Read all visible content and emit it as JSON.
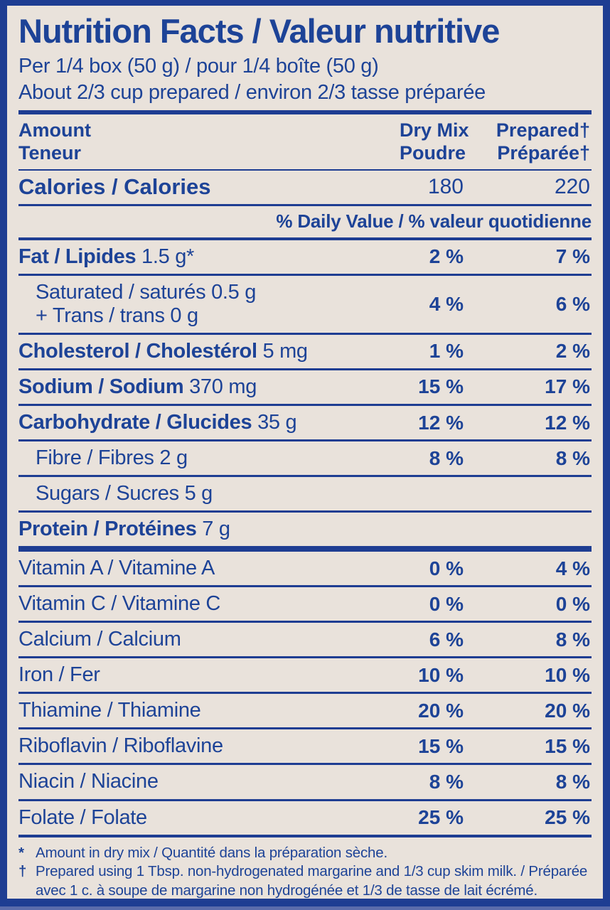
{
  "colors": {
    "text_blue": "#1d4397",
    "line_blue": "#1e3d92",
    "bg_beige": "#e9e2db",
    "edge_light": "#5b6cab"
  },
  "label": {
    "title": "Nutrition Facts / Valeur nutritive",
    "serving_line1": "Per 1/4 box (50 g) / pour 1/4 boîte (50 g)",
    "serving_line2": "About 2/3 cup prepared / environ 2/3 tasse préparée",
    "columns": {
      "amount_en": "Amount",
      "amount_fr": "Teneur",
      "dry_en": "Dry Mix",
      "dry_fr": "Poudre",
      "prepared_en": "Prepared†",
      "prepared_fr": "Préparée†"
    },
    "calories": {
      "label": "Calories / Calories",
      "dry_mix": "180",
      "prepared": "220"
    },
    "daily_value_header": "% Daily Value / % valeur quotidienne",
    "rows": [
      {
        "name": "Fat / Lipides",
        "amount": "1.5 g*",
        "dry": "2 %",
        "prepared": "7 %",
        "style": "main",
        "divider_after": "normal"
      },
      {
        "lines": [
          "Saturated / saturés 0.5 g",
          "+ Trans / trans 0 g"
        ],
        "dry": "4 %",
        "prepared": "6 %",
        "style": "sub",
        "divider_after": "normal"
      },
      {
        "name": "Cholesterol / Cholestérol",
        "amount": "5 mg",
        "dry": "1 %",
        "prepared": "2 %",
        "style": "main",
        "divider_after": "normal"
      },
      {
        "name": "Sodium / Sodium",
        "amount": "370 mg",
        "dry": "15 %",
        "prepared": "17 %",
        "style": "main",
        "divider_after": "normal"
      },
      {
        "name": "Carbohydrate / Glucides",
        "amount": "35 g",
        "dry": "12 %",
        "prepared": "12 %",
        "style": "main",
        "divider_after": "normal"
      },
      {
        "name": "Fibre / Fibres",
        "amount": "2 g",
        "dry": "8 %",
        "prepared": "8 %",
        "style": "sub",
        "divider_after": "normal"
      },
      {
        "name": "Sugars / Sucres",
        "amount": "5 g",
        "dry": "",
        "prepared": "",
        "style": "sub",
        "divider_after": "normal"
      },
      {
        "name": "Protein / Protéines",
        "amount": "7 g",
        "dry": "",
        "prepared": "",
        "style": "main",
        "divider_after": "heavy"
      },
      {
        "name": "Vitamin A / Vitamine A",
        "dry": "0 %",
        "prepared": "4 %",
        "style": "plain",
        "divider_after": "normal"
      },
      {
        "name": "Vitamin C / Vitamine C",
        "dry": "0 %",
        "prepared": "0 %",
        "style": "plain",
        "divider_after": "normal"
      },
      {
        "name": "Calcium / Calcium",
        "dry": "6 %",
        "prepared": "8 %",
        "style": "plain",
        "divider_after": "normal"
      },
      {
        "name": "Iron / Fer",
        "dry": "10 %",
        "prepared": "10 %",
        "style": "plain",
        "divider_after": "normal"
      },
      {
        "name": "Thiamine / Thiamine",
        "dry": "20 %",
        "prepared": "20 %",
        "style": "plain",
        "divider_after": "normal"
      },
      {
        "name": "Riboflavin / Riboflavine",
        "dry": "15 %",
        "prepared": "15 %",
        "style": "plain",
        "divider_after": "normal"
      },
      {
        "name": "Niacin / Niacine",
        "dry": "8 %",
        "prepared": "8 %",
        "style": "plain",
        "divider_after": "normal"
      },
      {
        "name": "Folate / Folate",
        "dry": "25 %",
        "prepared": "25 %",
        "style": "plain",
        "divider_after": "medium"
      }
    ],
    "footnotes": [
      {
        "marker": "*",
        "text": "Amount in dry mix / Quantité dans la préparation sèche."
      },
      {
        "marker": "†",
        "text": "Prepared using 1 Tbsp. non-hydrogenated margarine and 1/3 cup skim milk. / Préparée avec 1 c. à soupe de margarine non hydrogénée et 1/3 de tasse de lait écrémé."
      }
    ]
  }
}
